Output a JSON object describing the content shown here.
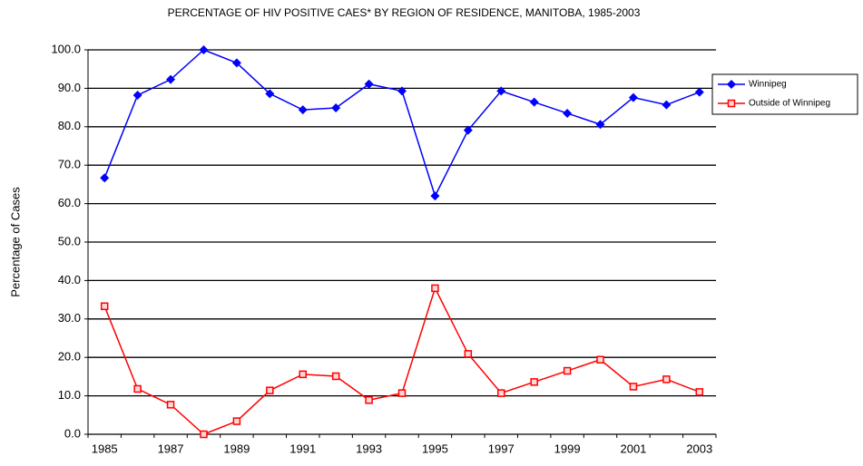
{
  "chart_data": {
    "type": "line",
    "title": "PERCENTAGE OF HIV POSITIVE CAES* BY REGION OF RESIDENCE, MANITOBA, 1985-2003",
    "y_label": "Percentage of Cases",
    "categories": [
      "1985",
      null,
      "1987",
      null,
      "1989",
      null,
      "1991",
      null,
      "1993",
      null,
      "1995",
      null,
      "1997",
      null,
      "1999",
      null,
      "2001",
      null,
      "2003"
    ],
    "series": [
      {
        "name": "Winnipeg",
        "color": "#0000ff",
        "marker": "diamond",
        "values": [
          66.7,
          88.2,
          92.3,
          100,
          96.6,
          88.6,
          84.4,
          84.9,
          91.1,
          89.3,
          62.0,
          79.1,
          89.3,
          86.4,
          83.5,
          80.6,
          87.6,
          85.7,
          89.0
        ]
      },
      {
        "name": "Outside of Winnipeg",
        "color": "#ff0000",
        "marker": "square",
        "values": [
          33.3,
          11.8,
          7.7,
          0,
          3.4,
          11.4,
          15.6,
          15.1,
          8.9,
          10.7,
          38.0,
          20.9,
          10.7,
          13.6,
          16.5,
          19.4,
          12.4,
          14.3,
          11.0
        ]
      }
    ],
    "ylim": [
      0,
      100
    ],
    "yticks": [
      {
        "value": 0,
        "label": "0.0"
      },
      {
        "value": 10,
        "label": "10.0"
      },
      {
        "value": 20,
        "label": "20.0"
      },
      {
        "value": 30,
        "label": "30.0"
      },
      {
        "value": 40,
        "label": "40.0"
      },
      {
        "value": 50,
        "label": "50.0"
      },
      {
        "value": 60,
        "label": "60.0"
      },
      {
        "value": 70,
        "label": "70.0"
      },
      {
        "value": 80,
        "label": "80.0"
      },
      {
        "value": 90,
        "label": "90.0"
      },
      {
        "value": 100,
        "label": "100.0"
      }
    ],
    "grid": true,
    "legend": "top-right"
  }
}
